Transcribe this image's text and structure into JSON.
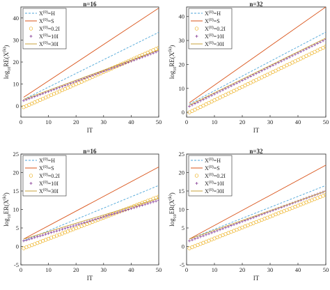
{
  "colors": {
    "H": "#4da6d8",
    "S": "#d95319",
    "I02": "#edb120",
    "I10": "#7e2f8e",
    "I30": "#c8a23a"
  },
  "chart_data": [
    {
      "type": "line",
      "title": "n=16",
      "xlabel": "IT",
      "ylabel": "log10RE(X(k))",
      "xlim": [
        0,
        50
      ],
      "ylim": [
        -5,
        45
      ],
      "xticks": [
        "0",
        "10",
        "20",
        "30",
        "40",
        "50"
      ],
      "yticks": [
        "0",
        "10",
        "20",
        "30",
        "40"
      ],
      "legend_position": "top-left",
      "series": [
        {
          "name": "X(0)=H",
          "style": "dashed",
          "color": "H",
          "x": [
            1,
            50
          ],
          "y": [
            3.0,
            33.5
          ]
        },
        {
          "name": "X(0)=S",
          "style": "solid",
          "color": "S",
          "x": [
            1,
            50
          ],
          "y": [
            4.0,
            44.5
          ]
        },
        {
          "name": "X(0)=0.2I",
          "style": "circle",
          "color": "I02",
          "x": [
            1,
            50
          ],
          "y": [
            -0.5,
            26.5
          ]
        },
        {
          "name": "X(0)=10I",
          "style": "plus",
          "color": "I10",
          "x": [
            1,
            50
          ],
          "y": [
            2.5,
            25.0
          ]
        },
        {
          "name": "X(0)=30I",
          "style": "solid",
          "color": "I30",
          "x": [
            1,
            50
          ],
          "y": [
            3.0,
            25.5
          ]
        }
      ]
    },
    {
      "type": "line",
      "title": "n=32",
      "xlabel": "IT",
      "ylabel": "log10RE(X(k))",
      "xlim": [
        0,
        50
      ],
      "ylim": [
        -2,
        44
      ],
      "xticks": [
        "0",
        "10",
        "20",
        "30",
        "40",
        "50"
      ],
      "yticks": [
        "0",
        "10",
        "20",
        "30",
        "40"
      ],
      "legend_position": "top-left",
      "series": [
        {
          "name": "X(0)=H",
          "style": "dashed",
          "color": "H",
          "x": [
            1,
            50
          ],
          "y": [
            3.5,
            33.5
          ]
        },
        {
          "name": "X(0)=S",
          "style": "solid",
          "color": "S",
          "x": [
            1,
            50
          ],
          "y": [
            4.0,
            44.0
          ]
        },
        {
          "name": "X(0)=0.2I",
          "style": "circle",
          "color": "I02",
          "x": [
            1,
            50
          ],
          "y": [
            0.0,
            27.5
          ]
        },
        {
          "name": "X(0)=10I",
          "style": "plus",
          "color": "I10",
          "x": [
            1,
            50
          ],
          "y": [
            2.5,
            30.5
          ]
        },
        {
          "name": "X(0)=30I",
          "style": "solid",
          "color": "I30",
          "x": [
            1,
            50
          ],
          "y": [
            3.0,
            31.0
          ]
        }
      ]
    },
    {
      "type": "line",
      "title": "n=16",
      "xlabel": "IT",
      "ylabel": "log10ER(X(k))",
      "xlim": [
        0,
        50
      ],
      "ylim": [
        -5,
        25
      ],
      "xticks": [
        "0",
        "10",
        "20",
        "30",
        "40",
        "50"
      ],
      "yticks": [
        "-5",
        "0",
        "5",
        "10",
        "15",
        "20",
        "25"
      ],
      "legend_position": "top-left",
      "series": [
        {
          "name": "X(0)=H",
          "style": "dashed",
          "color": "H",
          "x": [
            1,
            50
          ],
          "y": [
            1.5,
            16.5
          ]
        },
        {
          "name": "X(0)=S",
          "style": "solid",
          "color": "S",
          "x": [
            1,
            50
          ],
          "y": [
            2.0,
            21.5
          ]
        },
        {
          "name": "X(0)=0.2I",
          "style": "circle",
          "color": "I02",
          "x": [
            1,
            50
          ],
          "y": [
            -0.5,
            13.5
          ]
        },
        {
          "name": "X(0)=10I",
          "style": "plus",
          "color": "I10",
          "x": [
            1,
            50
          ],
          "y": [
            1.5,
            12.5
          ]
        },
        {
          "name": "X(0)=30I",
          "style": "solid",
          "color": "I30",
          "x": [
            1,
            50
          ],
          "y": [
            2.0,
            13.0
          ]
        }
      ]
    },
    {
      "type": "line",
      "title": "n=32",
      "xlabel": "IT",
      "ylabel": "log10ER(X(k))",
      "xlim": [
        0,
        50
      ],
      "ylim": [
        -5,
        25
      ],
      "xticks": [
        "0",
        "10",
        "20",
        "30",
        "40",
        "50"
      ],
      "yticks": [
        "-5",
        "0",
        "5",
        "10",
        "15",
        "20",
        "25"
      ],
      "legend_position": "top-left",
      "series": [
        {
          "name": "X(0)=H",
          "style": "dashed",
          "color": "H",
          "x": [
            1,
            50
          ],
          "y": [
            2.0,
            16.5
          ]
        },
        {
          "name": "X(0)=S",
          "style": "solid",
          "color": "S",
          "x": [
            1,
            50
          ],
          "y": [
            2.0,
            22.0
          ]
        },
        {
          "name": "X(0)=0.2I",
          "style": "circle",
          "color": "I02",
          "x": [
            1,
            50
          ],
          "y": [
            -0.5,
            14.0
          ]
        },
        {
          "name": "X(0)=10I",
          "style": "plus",
          "color": "I10",
          "x": [
            1,
            50
          ],
          "y": [
            1.5,
            15.0
          ]
        },
        {
          "name": "X(0)=30I",
          "style": "solid",
          "color": "I30",
          "x": [
            1,
            50
          ],
          "y": [
            2.0,
            15.0
          ]
        }
      ]
    }
  ]
}
